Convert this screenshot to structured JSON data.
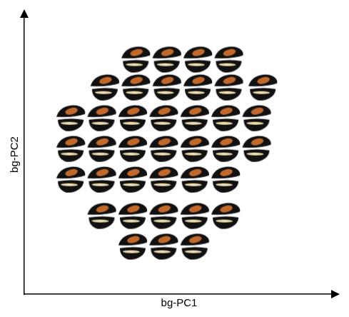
{
  "chart_data": {
    "type": "scatter",
    "x_label": "bg-PC1",
    "y_label": "bg-PC2",
    "x": [
      3.6,
      4.6,
      5.6,
      6.6,
      2.6,
      3.6,
      4.6,
      5.6,
      6.6,
      7.7,
      1.5,
      2.5,
      3.5,
      4.5,
      5.5,
      6.5,
      7.5,
      1.5,
      2.5,
      3.5,
      4.5,
      5.5,
      6.5,
      7.5,
      1.5,
      2.5,
      3.5,
      4.5,
      5.5,
      6.5,
      2.5,
      3.5,
      4.5,
      5.5,
      6.5,
      3.5,
      4.5,
      5.5
    ],
    "values": [
      8.4,
      8.4,
      8.4,
      8.4,
      7.4,
      7.4,
      7.4,
      7.4,
      7.4,
      7.4,
      6.3,
      6.3,
      6.3,
      6.3,
      6.3,
      6.3,
      6.3,
      5.2,
      5.2,
      5.2,
      5.2,
      5.2,
      5.2,
      5.2,
      4.1,
      4.1,
      4.1,
      4.1,
      4.1,
      4.1,
      2.8,
      2.8,
      2.8,
      2.8,
      2.8,
      1.7,
      1.7,
      1.7
    ],
    "xlim": [
      0,
      10
    ],
    "ylim": [
      0,
      10
    ],
    "tick_labels": false,
    "grid": false,
    "marker": "wing"
  }
}
